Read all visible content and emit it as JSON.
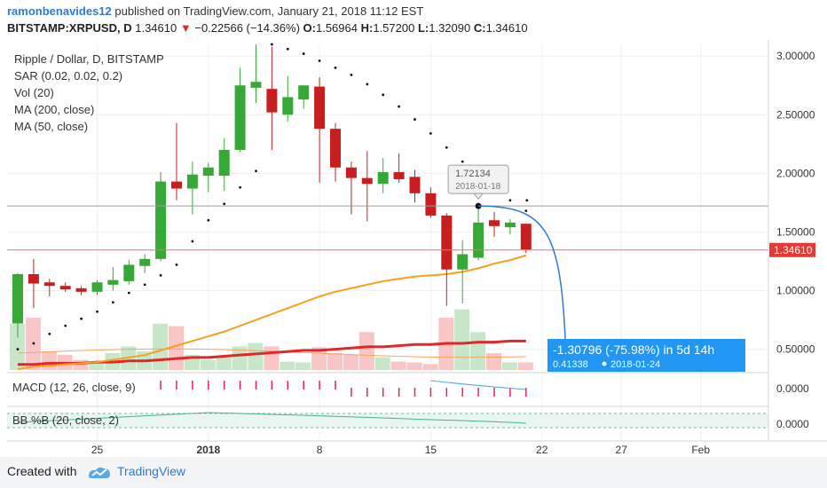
{
  "header": {
    "author": "ramonbenavides12",
    "published": "published on TradingView.com, January 21, 2018 11:12 EST",
    "symbol": "BITSTAMP:XRPUSD, D",
    "last": "1.34610",
    "arrow": "▼",
    "change": "−0.22566 (−14.36%)",
    "o_label": "O:",
    "o": "1.56964",
    "h_label": "H:",
    "h": "1.57200",
    "l_label": "L:",
    "l": "1.32090",
    "c_label": "C:",
    "c": "1.34610"
  },
  "legend": [
    "Ripple / Dollar, D, BITSTAMP",
    "SAR (0.02, 0.02, 0.2)",
    "Vol (20)",
    "MA (200, close)",
    "MA (50, close)"
  ],
  "price_tag": "1.34610",
  "annotation_price": "1.72134",
  "annotation_date": "2018-01-18",
  "projection": {
    "main": "-1.30796 (-75.98%) in 5d 14h",
    "sub_value": "0.41338",
    "sub_date": "2018-01-24"
  },
  "macd_label": "MACD (12, 26, close, 9)",
  "macd_value": "0.0000",
  "bb_label": "BB %B (20, close, 2)",
  "bb_value": "0.0000",
  "footer": {
    "created": "Created with",
    "brand": "TradingView"
  },
  "colors": {
    "up": "#36a836",
    "down": "#c81e1e",
    "ma50": "#f7a01e",
    "ma200": "#e0282a",
    "accent": "#2e7bcf"
  },
  "chart_data": {
    "type": "candlestick",
    "title": "Ripple / Dollar, D, BITSTAMP",
    "x_ticks": [
      "25",
      "2018",
      "8",
      "15",
      "22",
      "27",
      "Feb"
    ],
    "y_ticks": [
      "3.00000",
      "2.50000",
      "2.00000",
      "1.50000",
      "1.00000",
      "0.50000"
    ],
    "ylim": [
      0.3,
      3.1
    ],
    "candles": [
      {
        "date": "2017-12-20",
        "o": 0.72,
        "h": 1.15,
        "l": 0.6,
        "c": 1.14
      },
      {
        "date": "2017-12-21",
        "o": 1.14,
        "h": 1.27,
        "l": 0.85,
        "c": 1.06
      },
      {
        "date": "2017-12-22",
        "o": 1.07,
        "h": 1.1,
        "l": 0.95,
        "c": 1.04
      },
      {
        "date": "2017-12-23",
        "o": 1.04,
        "h": 1.07,
        "l": 0.99,
        "c": 1.01
      },
      {
        "date": "2017-12-24",
        "o": 1.02,
        "h": 1.04,
        "l": 0.96,
        "c": 0.99
      },
      {
        "date": "2017-12-25",
        "o": 0.99,
        "h": 1.09,
        "l": 0.96,
        "c": 1.07
      },
      {
        "date": "2017-12-26",
        "o": 1.05,
        "h": 1.2,
        "l": 1.0,
        "c": 1.09
      },
      {
        "date": "2017-12-27",
        "o": 1.08,
        "h": 1.26,
        "l": 1.05,
        "c": 1.22
      },
      {
        "date": "2017-12-28",
        "o": 1.21,
        "h": 1.31,
        "l": 1.15,
        "c": 1.27
      },
      {
        "date": "2017-12-29",
        "o": 1.27,
        "h": 2.01,
        "l": 1.25,
        "c": 1.93
      },
      {
        "date": "2017-12-30",
        "o": 1.93,
        "h": 2.43,
        "l": 1.77,
        "c": 1.87
      },
      {
        "date": "2017-12-31",
        "o": 1.87,
        "h": 2.1,
        "l": 1.65,
        "c": 1.99
      },
      {
        "date": "2018-01-01",
        "o": 1.98,
        "h": 2.09,
        "l": 1.84,
        "c": 2.05
      },
      {
        "date": "2018-01-02",
        "o": 1.98,
        "h": 2.3,
        "l": 1.85,
        "c": 2.2
      },
      {
        "date": "2018-01-03",
        "o": 2.2,
        "h": 2.9,
        "l": 2.18,
        "c": 2.75
      },
      {
        "date": "2018-01-04",
        "o": 2.73,
        "h": 3.1,
        "l": 2.6,
        "c": 2.78
      },
      {
        "date": "2018-01-05",
        "o": 2.72,
        "h": 3.08,
        "l": 2.2,
        "c": 2.52
      },
      {
        "date": "2018-01-06",
        "o": 2.5,
        "h": 2.83,
        "l": 2.44,
        "c": 2.65
      },
      {
        "date": "2018-01-07",
        "o": 2.63,
        "h": 2.75,
        "l": 2.55,
        "c": 2.75
      },
      {
        "date": "2018-01-08",
        "o": 2.74,
        "h": 2.82,
        "l": 1.92,
        "c": 2.38
      },
      {
        "date": "2018-01-09",
        "o": 2.38,
        "h": 2.43,
        "l": 1.93,
        "c": 2.05
      },
      {
        "date": "2018-01-10",
        "o": 2.05,
        "h": 2.1,
        "l": 1.65,
        "c": 1.96
      },
      {
        "date": "2018-01-11",
        "o": 1.96,
        "h": 2.19,
        "l": 1.59,
        "c": 1.91
      },
      {
        "date": "2018-01-12",
        "o": 1.91,
        "h": 2.13,
        "l": 1.83,
        "c": 2.01
      },
      {
        "date": "2018-01-13",
        "o": 2.01,
        "h": 2.17,
        "l": 1.92,
        "c": 1.95
      },
      {
        "date": "2018-01-14",
        "o": 1.97,
        "h": 2.03,
        "l": 1.75,
        "c": 1.83
      },
      {
        "date": "2018-01-15",
        "o": 1.83,
        "h": 1.88,
        "l": 1.62,
        "c": 1.64
      },
      {
        "date": "2018-01-16",
        "o": 1.64,
        "h": 1.66,
        "l": 0.87,
        "c": 1.18
      },
      {
        "date": "2018-01-17",
        "o": 1.18,
        "h": 1.43,
        "l": 0.89,
        "c": 1.31
      },
      {
        "date": "2018-01-18",
        "o": 1.28,
        "h": 1.72,
        "l": 1.26,
        "c": 1.58
      },
      {
        "date": "2018-01-19",
        "o": 1.6,
        "h": 1.67,
        "l": 1.46,
        "c": 1.55
      },
      {
        "date": "2018-01-20",
        "o": 1.54,
        "h": 1.61,
        "l": 1.48,
        "c": 1.58
      },
      {
        "date": "2018-01-21",
        "o": 1.57,
        "h": 1.57,
        "l": 1.32,
        "c": 1.35
      }
    ],
    "sar": [
      0.5,
      0.55,
      0.63,
      0.7,
      0.76,
      0.82,
      0.9,
      0.98,
      1.05,
      1.13,
      1.22,
      1.42,
      1.6,
      1.74,
      1.88,
      2.02,
      3.1,
      3.06,
      3.02,
      2.96,
      2.9,
      2.84,
      2.76,
      2.67,
      2.57,
      2.46,
      2.34,
      2.22,
      2.1,
      1.98,
      1.87,
      1.77,
      1.68
    ],
    "ma50": [
      0.33,
      0.35,
      0.36,
      0.37,
      0.38,
      0.39,
      0.41,
      0.43,
      0.45,
      0.49,
      0.53,
      0.57,
      0.61,
      0.65,
      0.7,
      0.75,
      0.8,
      0.85,
      0.9,
      0.95,
      0.99,
      1.02,
      1.05,
      1.08,
      1.1,
      1.12,
      1.13,
      1.14,
      1.16,
      1.19,
      1.23,
      1.26,
      1.3
    ],
    "ma200": [
      0.25,
      0.25,
      0.26,
      0.26,
      0.26,
      0.27,
      0.27,
      0.28,
      0.28,
      0.29,
      0.3,
      0.31,
      0.31,
      0.32,
      0.33,
      0.34,
      0.35,
      0.36,
      0.37,
      0.37,
      0.38,
      0.39,
      0.4,
      0.4,
      0.41,
      0.42,
      0.42,
      0.43,
      0.43,
      0.44,
      0.44,
      0.45,
      0.45
    ],
    "volume": [
      0.55,
      0.62,
      0.22,
      0.18,
      0.12,
      0.08,
      0.2,
      0.28,
      0.22,
      0.55,
      0.52,
      0.18,
      0.12,
      0.17,
      0.28,
      0.32,
      0.28,
      0.1,
      0.09,
      0.27,
      0.2,
      0.18,
      0.45,
      0.15,
      0.1,
      0.09,
      0.07,
      0.62,
      0.72,
      0.45,
      0.2,
      0.09,
      0.09
    ],
    "annotations": {
      "marked_high": {
        "date": "2018-01-18",
        "value": 1.72134
      },
      "projection_target": {
        "date": "2018-01-24",
        "value": 0.41338,
        "change": "-1.30796 (-75.98%)",
        "duration": "5d 14h"
      }
    }
  }
}
